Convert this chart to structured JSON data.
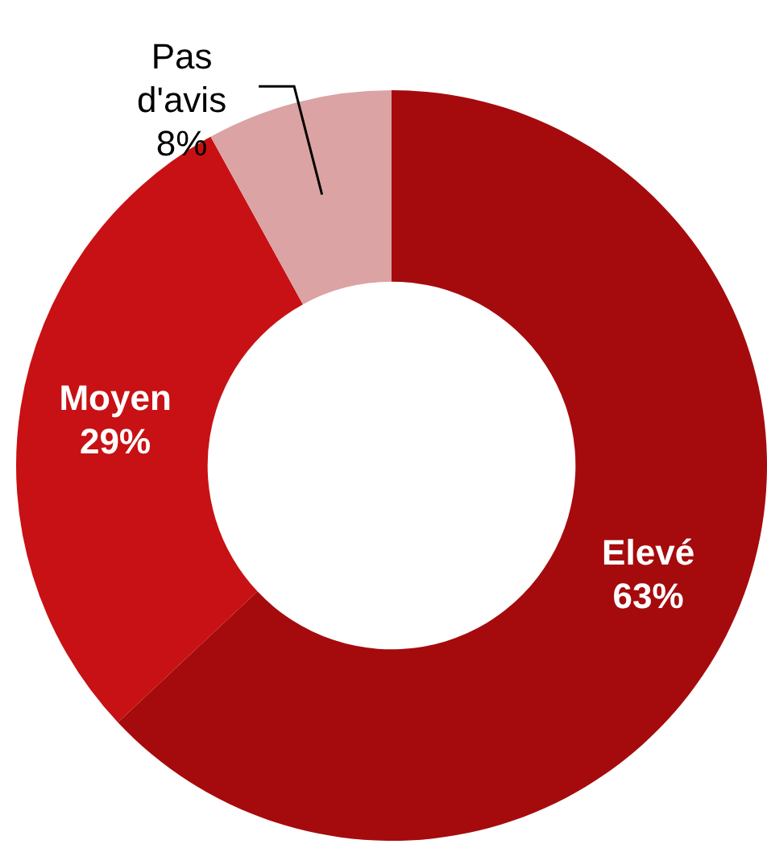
{
  "chart_data": {
    "type": "donut",
    "categories": [
      "Elevé",
      "Moyen",
      "Pas d'avis"
    ],
    "values": [
      63,
      29,
      8
    ],
    "colors": [
      "#a50b0d",
      "#c81114",
      "#dba3a3"
    ],
    "value_labels": [
      "63%",
      "29%",
      "8%"
    ],
    "legend": false
  }
}
